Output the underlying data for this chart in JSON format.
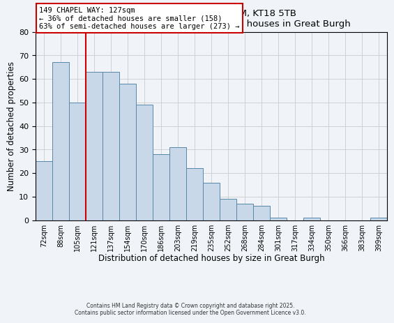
{
  "title": "149, CHAPEL WAY, EPSOM, KT18 5TB",
  "subtitle": "Size of property relative to detached houses in Great Burgh",
  "xlabel": "Distribution of detached houses by size in Great Burgh",
  "ylabel": "Number of detached properties",
  "bar_labels": [
    "72sqm",
    "88sqm",
    "105sqm",
    "121sqm",
    "137sqm",
    "154sqm",
    "170sqm",
    "186sqm",
    "203sqm",
    "219sqm",
    "235sqm",
    "252sqm",
    "268sqm",
    "284sqm",
    "301sqm",
    "317sqm",
    "334sqm",
    "350sqm",
    "366sqm",
    "383sqm",
    "399sqm"
  ],
  "bar_values": [
    25,
    67,
    50,
    63,
    63,
    58,
    49,
    28,
    31,
    22,
    16,
    9,
    7,
    6,
    1,
    0,
    1,
    0,
    0,
    0,
    1
  ],
  "bar_color": "#c8d8e8",
  "bar_edge_color": "#5588aa",
  "vline_x_index": 3,
  "vline_color": "#cc0000",
  "annotation_title": "149 CHAPEL WAY: 127sqm",
  "annotation_line1": "← 36% of detached houses are smaller (158)",
  "annotation_line2": "63% of semi-detached houses are larger (273) →",
  "annotation_box_color": "#ffffff",
  "annotation_box_edge_color": "#cc0000",
  "ylim": [
    0,
    80
  ],
  "yticks": [
    0,
    10,
    20,
    30,
    40,
    50,
    60,
    70,
    80
  ],
  "footer1": "Contains HM Land Registry data © Crown copyright and database right 2025.",
  "footer2": "Contains public sector information licensed under the Open Government Licence v3.0.",
  "background_color": "#f0f4f8",
  "plot_background_color": "#f0f4f8",
  "grid_color": "#cccccc"
}
